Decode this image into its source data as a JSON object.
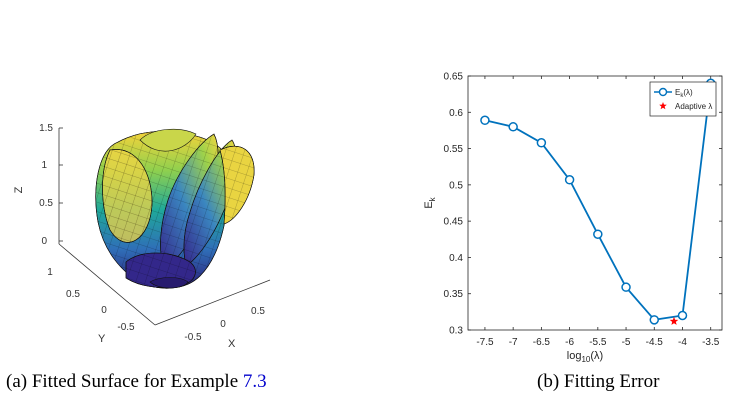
{
  "surface_plot": {
    "axis_labels": {
      "x": "X",
      "y": "Y",
      "z": "Z"
    },
    "z_ticks": [
      "0",
      "0.5",
      "1",
      "1.5"
    ],
    "y_ticks": [
      "1",
      "0.5",
      "0",
      "-0.5"
    ],
    "x_ticks": [
      "-0.5",
      "0",
      "0.5"
    ],
    "colormap": [
      "#3b2a8f",
      "#2f6fb8",
      "#1fa99a",
      "#7ccb5a",
      "#f5d33a"
    ]
  },
  "captions": {
    "a_prefix": "(a) Fitted Surface for Example ",
    "a_ref": "7.3",
    "b": "(b) Fitting Error"
  },
  "chart_data": {
    "type": "line",
    "x": [
      -7.5,
      -7,
      -6.5,
      -6,
      -5.5,
      -5,
      -4.5,
      -4,
      -3.5
    ],
    "series": [
      {
        "name": "E",
        "name_subscript": "k",
        "name_suffix": "(λ)",
        "values": [
          0.589,
          0.58,
          0.558,
          0.507,
          0.432,
          0.359,
          0.314,
          0.32,
          0.64
        ],
        "color": "#0072bd",
        "marker": "circle"
      }
    ],
    "annotations": [
      {
        "name": "Adaptive λ",
        "x": -4.15,
        "y": 0.312,
        "color": "#ff0000",
        "marker": "star"
      }
    ],
    "xlabel": "log",
    "xlabel_subscript": "10",
    "xlabel_suffix": "(λ)",
    "ylabel": "E",
    "ylabel_subscript": "k",
    "xlim": [
      -7.8,
      -3.3
    ],
    "ylim": [
      0.3,
      0.65
    ],
    "xticks": [
      "-7.5",
      "-7",
      "-6.5",
      "-6",
      "-5.5",
      "-5",
      "-4.5",
      "-4",
      "-3.5"
    ],
    "yticks": [
      "0.3",
      "0.35",
      "0.4",
      "0.45",
      "0.5",
      "0.55",
      "0.6",
      "0.65"
    ],
    "legend_position": "top-right",
    "grid": false
  }
}
